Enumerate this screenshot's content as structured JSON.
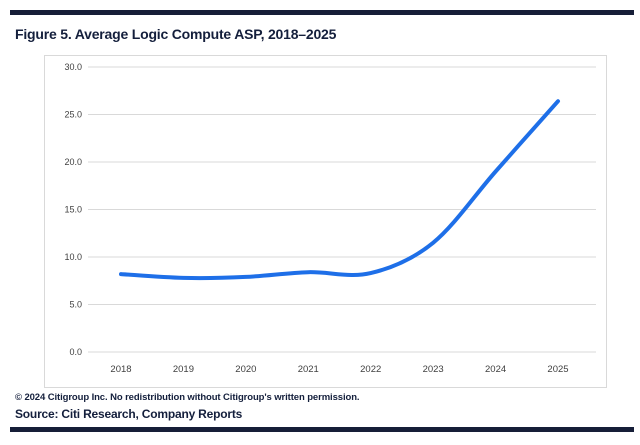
{
  "header": {
    "title": "Figure 5. Average Logic Compute ASP, 2018–2025"
  },
  "footer": {
    "copyright": "© 2024 Citigroup Inc. No redistribution without Citigroup's written permission.",
    "source": "Source: Citi Research, Company Reports"
  },
  "colors": {
    "accent_navy": "#161e38",
    "title_navy": "#141f3c",
    "line_blue": "#1e6fe8",
    "gridline_gray": "#d9d9d9",
    "tick_label_gray": "#404040",
    "card_border": "#d9d9d9"
  },
  "chart_data": {
    "type": "line",
    "title": "Figure 5. Average Logic Compute ASP, 2018–2025",
    "categories": [
      "2018",
      "2019",
      "2020",
      "2021",
      "2022",
      "2023",
      "2024",
      "2025"
    ],
    "values": [
      8.2,
      7.8,
      7.9,
      8.4,
      8.3,
      11.5,
      19.0,
      26.4
    ],
    "series_name": "Average Logic Compute ASP",
    "xlabel": "",
    "ylabel": "",
    "ylim": [
      0,
      30
    ],
    "y_tick_step": 5,
    "y_tick_labels": [
      "0.0",
      "5.0",
      "10.0",
      "15.0",
      "20.0",
      "25.0",
      "30.0"
    ],
    "grid": true,
    "legend": "none",
    "line_color": "#1e6fe8",
    "line_width": 4
  }
}
